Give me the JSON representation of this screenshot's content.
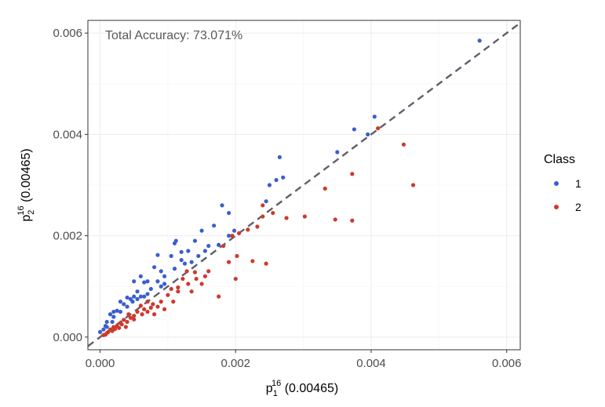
{
  "chart_data": {
    "type": "scatter",
    "annotation": "Total Accuracy: 73.071%",
    "xlabel": {
      "main": "p",
      "sub": "1",
      "sup": "16",
      "suffix": " (0.00465)"
    },
    "ylabel": {
      "main": "p",
      "sub": "2",
      "sup": "16",
      "suffix": " (0.00465)"
    },
    "xlim": [
      -0.00018,
      0.0062
    ],
    "ylim": [
      -0.00025,
      0.00625
    ],
    "xticks": [
      0.0,
      0.002,
      0.004,
      0.006
    ],
    "xtick_labels": [
      "0.000",
      "0.002",
      "0.004",
      "0.006"
    ],
    "yticks": [
      0.0,
      0.002,
      0.004,
      0.006
    ],
    "ytick_labels": [
      "0.000",
      "0.002",
      "0.004",
      "0.006"
    ],
    "grid": true,
    "reference_line": {
      "style": "dashed",
      "color": "#5f5f6b",
      "slope": 1,
      "intercept": 0
    },
    "legend": {
      "title": "Class",
      "position": "right"
    },
    "series": [
      {
        "name": "1",
        "color": "#3a5fcd",
        "points": [
          [
            0.0056,
            0.00585
          ],
          [
            0.00405,
            0.00435
          ],
          [
            0.00395,
            0.004
          ],
          [
            0.00375,
            0.0041
          ],
          [
            0.0035,
            0.00365
          ],
          [
            0.00265,
            0.00355
          ],
          [
            0.0027,
            0.00315
          ],
          [
            0.0026,
            0.0031
          ],
          [
            0.0025,
            0.003
          ],
          [
            0.00245,
            0.00268
          ],
          [
            0.0019,
            0.00245
          ],
          [
            0.0018,
            0.0026
          ],
          [
            0.00168,
            0.0022
          ],
          [
            0.0015,
            0.0021
          ],
          [
            0.0016,
            0.0018
          ],
          [
            0.0019,
            0.002
          ],
          [
            0.00198,
            0.0021
          ],
          [
            0.0014,
            0.0019
          ],
          [
            0.0013,
            0.0017
          ],
          [
            0.0012,
            0.00168
          ],
          [
            0.0011,
            0.00185
          ],
          [
            0.00105,
            0.0016
          ],
          [
            0.00112,
            0.0019
          ],
          [
            0.00155,
            0.0017
          ],
          [
            0.00135,
            0.00148
          ],
          [
            0.00085,
            0.00162
          ],
          [
            0.0009,
            0.0013
          ],
          [
            0.00095,
            0.0012
          ],
          [
            0.00085,
            0.0011
          ],
          [
            0.0008,
            0.00138
          ],
          [
            0.0006,
            0.0012
          ],
          [
            0.00065,
            0.00108
          ],
          [
            0.0007,
            0.0011
          ],
          [
            0.0009,
            0.001
          ],
          [
            0.00075,
            0.00095
          ],
          [
            0.0005,
            0.0011
          ],
          [
            0.00055,
            0.0009
          ],
          [
            0.0006,
            0.0008
          ],
          [
            0.0005,
            0.0008
          ],
          [
            0.00045,
            0.00075
          ],
          [
            0.0004,
            0.00078
          ],
          [
            0.00048,
            0.0007
          ],
          [
            0.0004,
            0.0006
          ],
          [
            0.00035,
            0.00065
          ],
          [
            0.0003,
            0.0007
          ],
          [
            0.0003,
            0.0005
          ],
          [
            0.00025,
            0.00052
          ],
          [
            0.0002,
            0.0005
          ],
          [
            0.0002,
            0.0004
          ],
          [
            0.00015,
            0.00045
          ],
          [
            0.00018,
            0.0003
          ],
          [
            0.0001,
            0.0003
          ],
          [
            0.0001,
            0.0002
          ],
          [
            5e-05,
            0.00015
          ],
          [
            0.0,
            0.0001
          ],
          [
            8e-05,
            0.00022
          ],
          [
            0.00055,
            0.00075
          ],
          [
            0.0007,
            0.00085
          ],
          [
            0.00065,
            0.0008
          ],
          [
            0.00095,
            0.00105
          ],
          [
            0.0011,
            0.00135
          ],
          [
            0.00125,
            0.00145
          ],
          [
            0.0012,
            0.00152
          ],
          [
            0.00145,
            0.0016
          ],
          [
            0.00175,
            0.00182
          ]
        ]
      },
      {
        "name": "2",
        "color": "#cd3a2c",
        "points": [
          [
            0.0041,
            0.00412
          ],
          [
            0.00448,
            0.0038
          ],
          [
            0.00462,
            0.003
          ],
          [
            0.00372,
            0.00322
          ],
          [
            0.00332,
            0.00293
          ],
          [
            0.00347,
            0.00232
          ],
          [
            0.00372,
            0.0023
          ],
          [
            0.00302,
            0.00238
          ],
          [
            0.00275,
            0.00235
          ],
          [
            0.00255,
            0.00245
          ],
          [
            0.0024,
            0.0026
          ],
          [
            0.0024,
            0.00238
          ],
          [
            0.00232,
            0.00218
          ],
          [
            0.00218,
            0.00212
          ],
          [
            0.00205,
            0.00205
          ],
          [
            0.00195,
            0.002
          ],
          [
            0.00182,
            0.0018
          ],
          [
            0.00202,
            0.0016
          ],
          [
            0.0019,
            0.00148
          ],
          [
            0.00225,
            0.0015
          ],
          [
            0.00245,
            0.00145
          ],
          [
            0.002,
            0.00115
          ],
          [
            0.00175,
            0.0008
          ],
          [
            0.0016,
            0.0013
          ],
          [
            0.00155,
            0.0012
          ],
          [
            0.0015,
            0.00105
          ],
          [
            0.0014,
            0.00128
          ],
          [
            0.00128,
            0.0013
          ],
          [
            0.00122,
            0.00115
          ],
          [
            0.00115,
            0.0009
          ],
          [
            0.00108,
            0.0007
          ],
          [
            0.001,
            0.00083
          ],
          [
            0.00105,
            0.00095
          ],
          [
            0.00095,
            0.00055
          ],
          [
            0.0009,
            0.0007
          ],
          [
            0.0008,
            0.00045
          ],
          [
            0.00085,
            0.0006
          ],
          [
            0.00078,
            0.00065
          ],
          [
            0.0007,
            0.0007
          ],
          [
            0.00065,
            0.00055
          ],
          [
            0.00062,
            0.00045
          ],
          [
            0.0006,
            0.00062
          ],
          [
            0.00055,
            0.0005
          ],
          [
            0.0005,
            0.00042
          ],
          [
            0.00045,
            0.00038
          ],
          [
            0.00042,
            0.00045
          ],
          [
            0.0004,
            0.0003
          ],
          [
            0.00035,
            0.00034
          ],
          [
            0.00032,
            0.00025
          ],
          [
            0.0003,
            0.00028
          ],
          [
            0.00025,
            0.00022
          ],
          [
            0.0002,
            0.0002
          ],
          [
            0.00018,
            0.00012
          ],
          [
            0.00015,
            0.00015
          ],
          [
            0.00012,
            0.0001
          ],
          [
            0.0001,
            8e-05
          ],
          [
            8e-05,
            5e-05
          ],
          [
            5e-05,
            4e-05
          ],
          [
            0.00022,
            0.00016
          ],
          [
            0.00028,
            0.00018
          ],
          [
            0.00038,
            0.0002
          ],
          [
            0.0005,
            0.00035
          ],
          [
            0.0007,
            0.0005
          ],
          [
            0.00075,
            0.00058
          ],
          [
            0.0013,
            0.00105
          ],
          [
            0.00135,
            0.0009
          ],
          [
            0.00115,
            0.00098
          ],
          [
            0.00142,
            0.00115
          ]
        ]
      }
    ]
  }
}
